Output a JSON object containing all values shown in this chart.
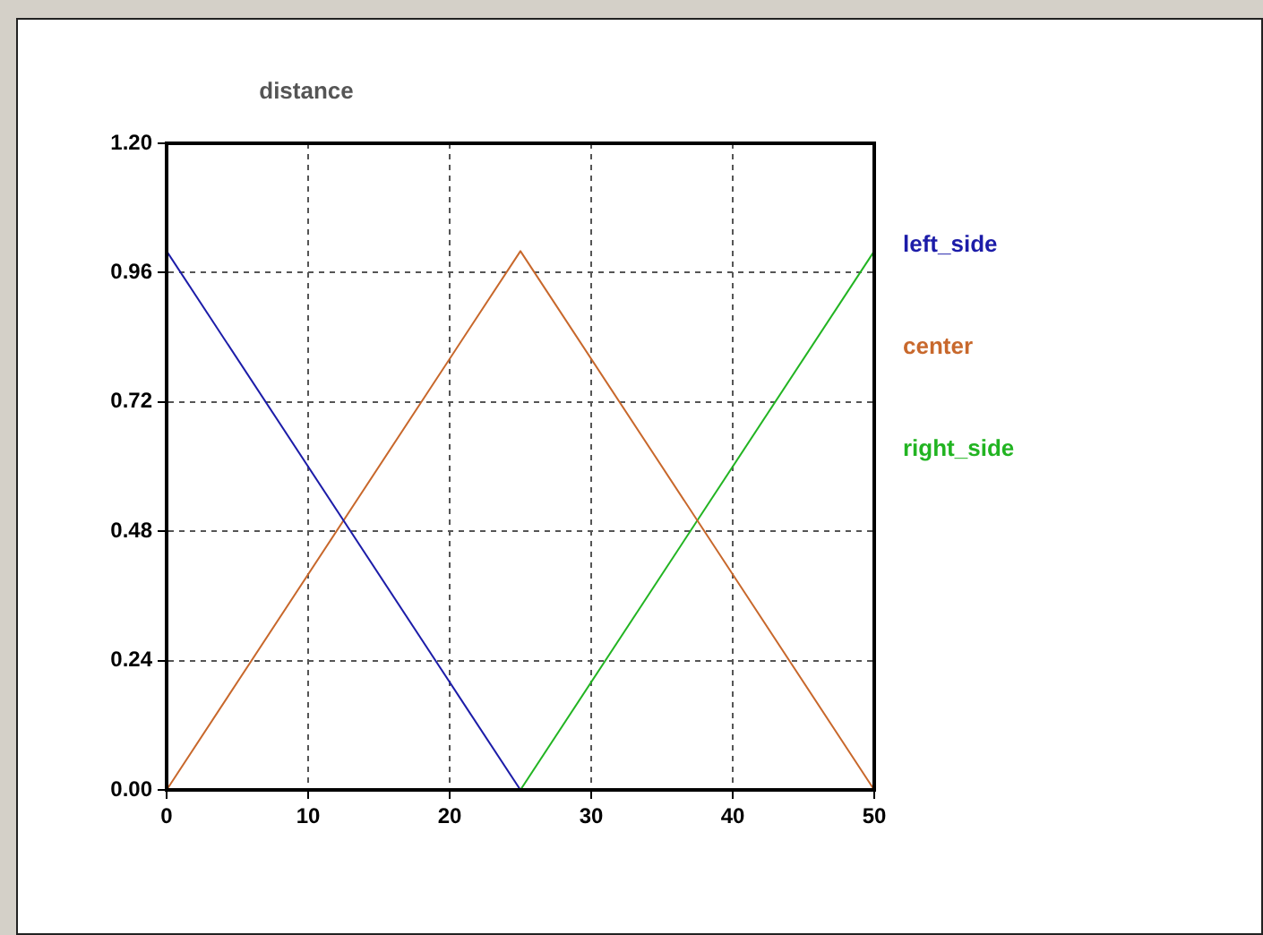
{
  "chart_data": {
    "type": "line",
    "ylabel": "distance",
    "series": [
      {
        "name": "left_side",
        "color": "#1c1ca8",
        "x": [
          0,
          25
        ],
        "values": [
          1,
          0
        ]
      },
      {
        "name": "center",
        "color": "#c8682c",
        "x": [
          0,
          25,
          50
        ],
        "values": [
          0,
          1,
          0
        ]
      },
      {
        "name": "right_side",
        "color": "#22b422",
        "x": [
          25,
          50
        ],
        "values": [
          0,
          1
        ]
      }
    ],
    "xlim": [
      0,
      50
    ],
    "xticks": [
      0,
      10,
      20,
      30,
      40,
      50
    ],
    "ylim": [
      0,
      1.2
    ],
    "yticks": [
      {
        "value": 0,
        "label": "0.00"
      },
      {
        "value": 0.24,
        "label": "0.24"
      },
      {
        "value": 0.48,
        "label": "0.48"
      },
      {
        "value": 0.72,
        "label": "0.72"
      },
      {
        "value": 0.96,
        "label": "0.96"
      },
      {
        "value": 1.2,
        "label": "1.20"
      }
    ],
    "grid": true,
    "legend": "right",
    "marker": "none",
    "line_style": "solid"
  }
}
